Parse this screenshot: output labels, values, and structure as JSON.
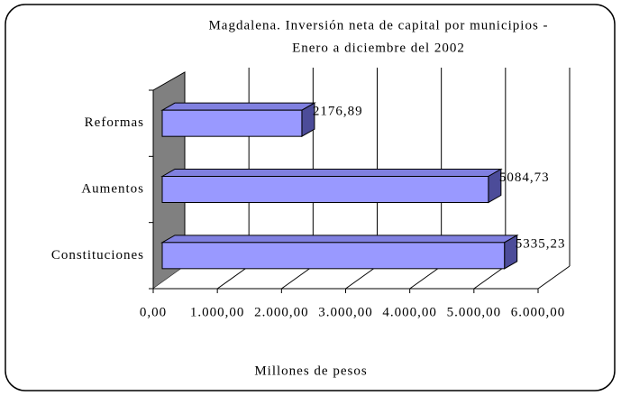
{
  "chart_data": {
    "type": "bar3d-horizontal",
    "title": [
      "Magdalena. Inversión neta de capital  por municipios -",
      "Enero a diciembre  del 2002"
    ],
    "categories": [
      "Reformas",
      "Aumentos",
      "Constituciones"
    ],
    "values": [
      2176.89,
      5084.73,
      5335.23
    ],
    "value_labels": [
      "2176,89",
      "5084,73",
      "5335,23"
    ],
    "color": "#9999ff",
    "xlim": [
      0,
      6000
    ],
    "xticks": [
      {
        "value": 0,
        "label": "0,00"
      },
      {
        "value": 1000,
        "label": "1.000,00"
      },
      {
        "value": 2000,
        "label": "2.000,00"
      },
      {
        "value": 3000,
        "label": "3.000,00"
      },
      {
        "value": 4000,
        "label": "4.000,00"
      },
      {
        "value": 5000,
        "label": "5.000,00"
      },
      {
        "value": 6000,
        "label": "6.000,00"
      }
    ],
    "xlabel": "Millones de pesos",
    "grid": true
  }
}
